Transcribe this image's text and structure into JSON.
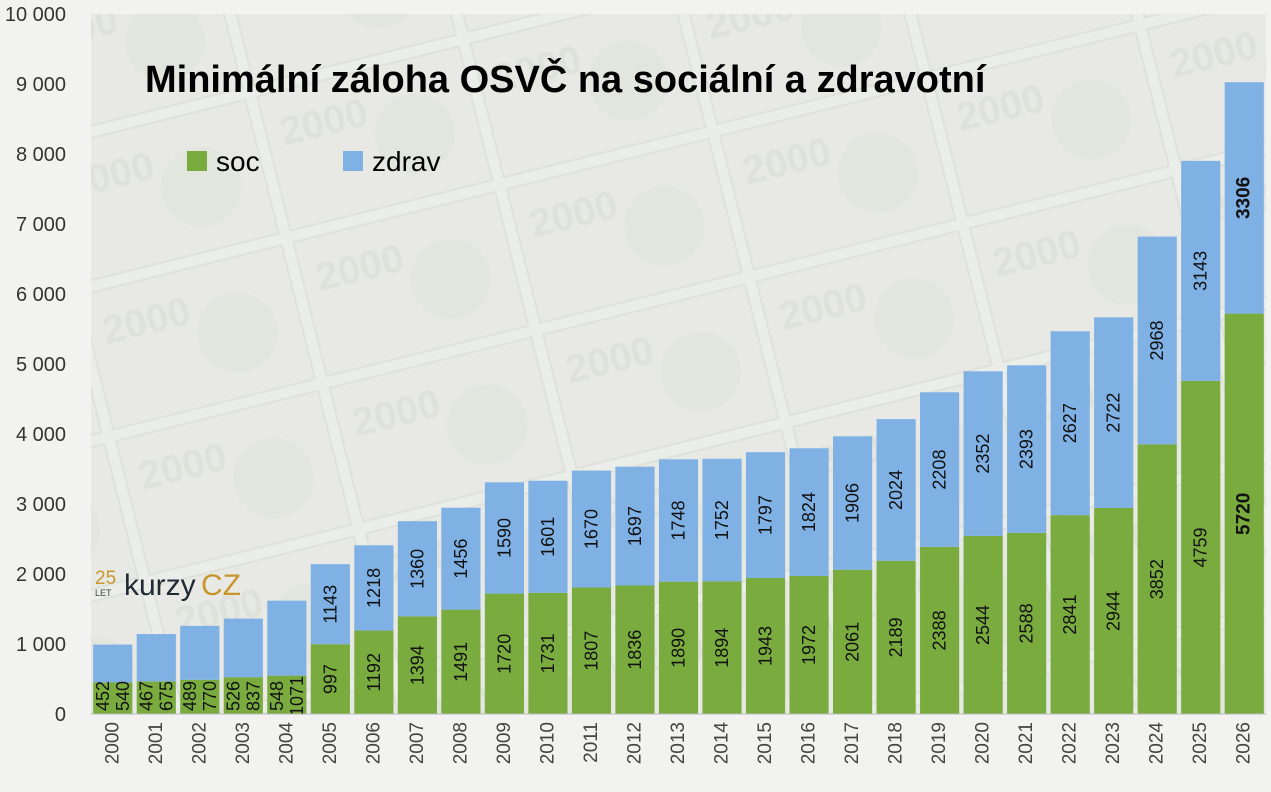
{
  "chart_data": {
    "type": "bar",
    "stacked": true,
    "title": "Minimální záloha OSVČ na sociální a zdravotní",
    "categories": [
      "2000",
      "2001",
      "2002",
      "2003",
      "2004",
      "2005",
      "2006",
      "2007",
      "2008",
      "2009",
      "2010",
      "2011",
      "2012",
      "2013",
      "2014",
      "2015",
      "2016",
      "2017",
      "2018",
      "2019",
      "2020",
      "2021",
      "2022",
      "2023",
      "2024",
      "2025",
      "2026"
    ],
    "series": [
      {
        "name": "soc",
        "color": "#7aab3e",
        "values": [
          452,
          467,
          489,
          526,
          548,
          997,
          1192,
          1394,
          1491,
          1720,
          1731,
          1807,
          1836,
          1890,
          1894,
          1943,
          1972,
          2061,
          2189,
          2388,
          2544,
          2588,
          2841,
          2944,
          3852,
          4759,
          5720
        ]
      },
      {
        "name": "zdrav",
        "color": "#7fb1e4",
        "values": [
          540,
          675,
          770,
          837,
          1071,
          1143,
          1218,
          1360,
          1456,
          1590,
          1601,
          1670,
          1697,
          1748,
          1752,
          1797,
          1824,
          1906,
          2024,
          2208,
          2352,
          2393,
          2627,
          2722,
          2968,
          3143,
          3306
        ]
      }
    ],
    "ylim": [
      0,
      10000
    ],
    "yticks": [
      "0",
      "1 000",
      "2 000",
      "3 000",
      "4 000",
      "5 000",
      "6 000",
      "7 000",
      "8 000",
      "9 000",
      "10 000"
    ],
    "bold_labels_year": "2026",
    "legend_position": "top-left",
    "grid": false,
    "xlabel": "",
    "ylabel": ""
  },
  "logo": {
    "num": "25",
    "let": "LET",
    "kurzy": "kurzy",
    "cz": "CZ"
  }
}
